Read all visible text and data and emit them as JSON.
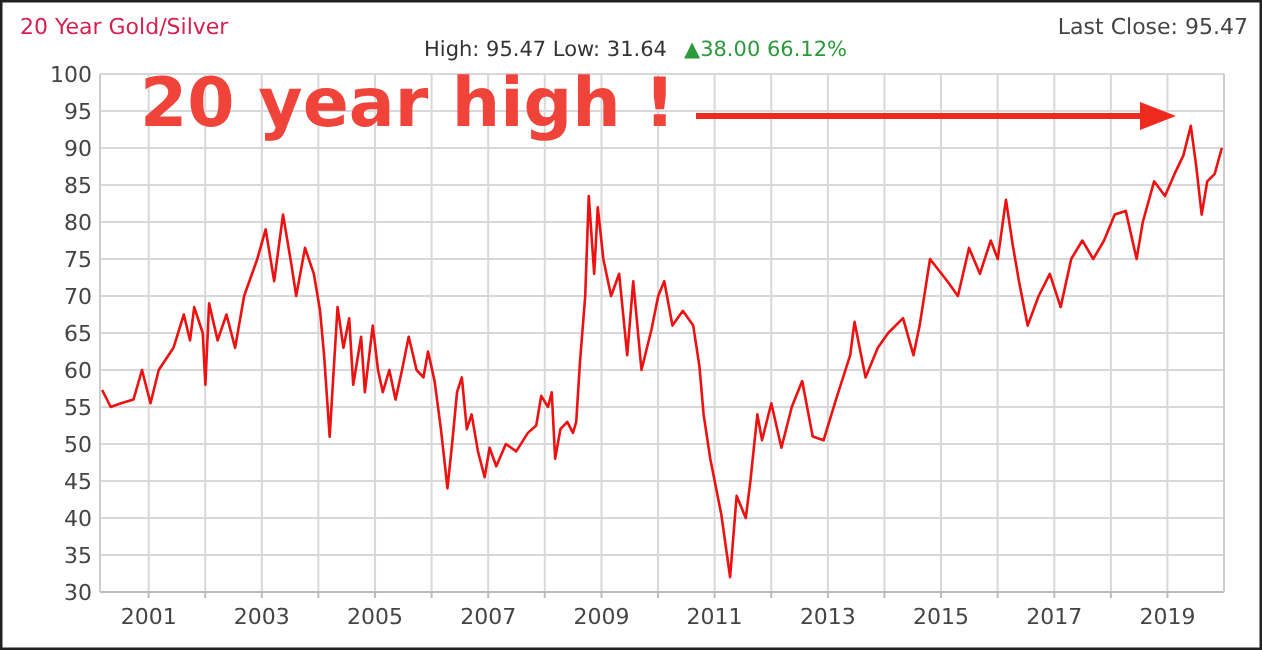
{
  "chart_data": {
    "type": "line",
    "title": "20 Year Gold/Silver",
    "subtitle": "High: 95.47 Low: 31.64",
    "annotations": [
      "Last Close: 95.47",
      "▲38.00 66.12%",
      "20 year high !"
    ],
    "xlim": [
      "2000-02-22",
      "2020-01-01"
    ],
    "xticks": [
      {
        "value": "2001",
        "label": "2001"
      },
      {
        "value": "2002",
        "label": null
      },
      {
        "value": "2003",
        "label": "2003"
      },
      {
        "value": "2004",
        "label": null
      },
      {
        "value": "2005",
        "label": "2005"
      },
      {
        "value": "2006",
        "label": null
      },
      {
        "value": "2007",
        "label": "2007"
      },
      {
        "value": "2008",
        "label": null
      },
      {
        "value": "2009",
        "label": "2009"
      },
      {
        "value": "2010",
        "label": null
      },
      {
        "value": "2011",
        "label": "2011"
      },
      {
        "value": "2012",
        "label": null
      },
      {
        "value": "2013",
        "label": "2013"
      },
      {
        "value": "2014",
        "label": null
      },
      {
        "value": "2015",
        "label": "2015"
      },
      {
        "value": "2016",
        "label": null
      },
      {
        "value": "2017",
        "label": "2017"
      },
      {
        "value": "2018",
        "label": null
      },
      {
        "value": "2019",
        "label": "2019"
      }
    ],
    "ylim": [
      30,
      100
    ],
    "yticks": [
      30,
      35,
      40,
      45,
      50,
      55,
      60,
      65,
      70,
      75,
      80,
      85,
      90,
      95,
      100
    ],
    "grid": true,
    "marker": "none",
    "line_style": "solid",
    "x": [
      "2000-03-07",
      "2000-05-01",
      "2000-07-07",
      "2000-09-25",
      "2000-11-19",
      "2001-01-13",
      "2001-03-07",
      "2001-06-10",
      "2001-08-16",
      "2001-09-25",
      "2001-10-22",
      "2001-12-16",
      "2002-01-02",
      "2002-01-26",
      "2002-03-22",
      "2002-05-18",
      "2002-07-13",
      "2002-09-09",
      "2002-12-03",
      "2003-01-26",
      "2003-03-22",
      "2003-05-18",
      "2003-07-13",
      "2003-08-11",
      "2003-10-07",
      "2003-12-03",
      "2004-01-12",
      "2004-02-07",
      "2004-03-14",
      "2004-04-09",
      "2004-05-04",
      "2004-06-11",
      "2004-07-18",
      "2004-08-13",
      "2004-10-03",
      "2004-10-27",
      "2004-12-17",
      "2005-01-20",
      "2005-02-20",
      "2005-04-03",
      "2005-05-13",
      "2005-06-24",
      "2005-08-06",
      "2005-09-26",
      "2005-11-09",
      "2005-12-09",
      "2006-01-20",
      "2006-03-02",
      "2006-04-13",
      "2006-05-13",
      "2006-06-14",
      "2006-07-15",
      "2006-08-16",
      "2006-09-16",
      "2006-10-27",
      "2006-12-09",
      "2007-01-10",
      "2007-02-22",
      "2007-04-25",
      "2007-07-01",
      "2007-09-14",
      "2007-11-07",
      "2007-12-09",
      "2008-01-22",
      "2008-02-15",
      "2008-03-08",
      "2008-04-11",
      "2008-05-25",
      "2008-07-01",
      "2008-07-22",
      "2008-08-15",
      "2008-09-18",
      "2008-10-11",
      "2008-11-15",
      "2008-12-08",
      "2009-01-13",
      "2009-03-04",
      "2009-04-25",
      "2009-06-16",
      "2009-07-25",
      "2009-09-16",
      "2009-11-20",
      "2010-01-02",
      "2010-02-10",
      "2010-04-04",
      "2010-06-10",
      "2010-08-16",
      "2010-09-25",
      "2010-10-22",
      "2010-12-04",
      "2011-02-13",
      "2011-04-11",
      "2011-05-23",
      "2011-07-21",
      "2011-08-20",
      "2011-10-04",
      "2011-11-03",
      "2012-01-02",
      "2012-03-07",
      "2012-05-13",
      "2012-07-19",
      "2012-09-25",
      "2012-12-04",
      "2013-02-22",
      "2013-05-25",
      "2013-06-22",
      "2013-09-01",
      "2013-11-19",
      "2014-01-25",
      "2014-05-01",
      "2014-07-07",
      "2014-08-16",
      "2014-10-22",
      "2015-02-11",
      "2015-04-20",
      "2015-07-01",
      "2015-09-09",
      "2015-11-18",
      "2016-01-02",
      "2016-02-24",
      "2016-04-07",
      "2016-05-18",
      "2016-07-13",
      "2016-09-22",
      "2016-12-03",
      "2017-02-11",
      "2017-04-20",
      "2017-07-01",
      "2017-09-09",
      "2017-11-18",
      "2018-01-26",
      "2018-04-07",
      "2018-06-16",
      "2018-07-26",
      "2018-10-07",
      "2018-12-16",
      "2019-02-16",
      "2019-04-14",
      "2019-06-01",
      "2019-07-06",
      "2019-08-10",
      "2019-09-15",
      "2019-11-02",
      "2019-12-18"
    ],
    "series": [
      {
        "color": "#ee1111",
        "values": [
          57.3,
          55,
          55.5,
          56,
          60,
          55.5,
          60,
          63,
          67.5,
          64,
          68.5,
          65,
          58,
          69,
          64,
          67.5,
          63,
          70,
          75,
          79,
          72,
          81,
          74,
          70,
          76.5,
          73,
          68,
          62,
          51,
          60,
          68.5,
          63,
          67,
          58,
          64.5,
          57,
          66,
          60,
          57,
          60,
          56,
          60,
          64.5,
          60,
          59,
          62.5,
          58.5,
          52,
          44,
          50,
          57,
          59,
          52,
          54,
          49,
          45.5,
          49.5,
          47,
          50,
          49,
          51.5,
          52.5,
          56.5,
          55,
          57,
          48,
          52,
          53,
          51.5,
          53,
          61,
          70,
          83.5,
          73,
          82,
          75,
          70,
          73,
          62,
          72,
          60,
          65.5,
          70,
          72,
          66,
          68,
          66,
          60.5,
          54,
          48,
          40.5,
          32,
          43,
          40,
          45,
          54,
          50.5,
          55.5,
          49.5,
          55,
          58.5,
          51,
          50.5,
          56,
          62,
          66.5,
          59,
          63,
          65,
          67,
          62,
          66,
          75,
          72,
          70,
          76.5,
          73,
          77.5,
          75,
          83,
          77,
          72,
          66,
          70,
          73,
          68.5,
          75,
          77.5,
          75,
          77.5,
          81,
          81.5,
          75,
          80,
          85.5,
          83.5,
          86.5,
          89,
          93,
          87.5,
          81,
          85.5,
          86.5,
          90
        ]
      }
    ]
  }
}
